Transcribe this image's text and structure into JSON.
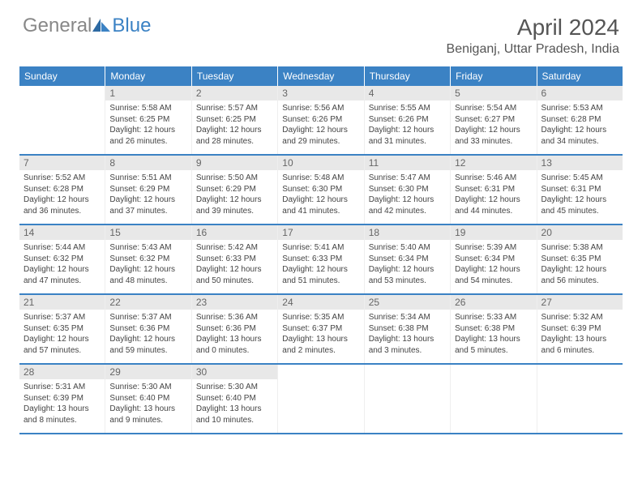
{
  "brand": {
    "part1": "General",
    "part2": "Blue"
  },
  "colors": {
    "header_bg": "#3b82c4",
    "header_text": "#ffffff",
    "daynum_bg": "#e8e8e8",
    "daynum_text": "#666666",
    "body_text": "#444444",
    "row_divider": "#3b82c4",
    "title_text": "#555555"
  },
  "title": "April 2024",
  "location": "Beniganj, Uttar Pradesh, India",
  "days_of_week": [
    "Sunday",
    "Monday",
    "Tuesday",
    "Wednesday",
    "Thursday",
    "Friday",
    "Saturday"
  ],
  "weeks": [
    [
      {
        "n": "",
        "sunrise": "",
        "sunset": "",
        "daylight1": "",
        "daylight2": ""
      },
      {
        "n": "1",
        "sunrise": "Sunrise: 5:58 AM",
        "sunset": "Sunset: 6:25 PM",
        "daylight1": "Daylight: 12 hours",
        "daylight2": "and 26 minutes."
      },
      {
        "n": "2",
        "sunrise": "Sunrise: 5:57 AM",
        "sunset": "Sunset: 6:25 PM",
        "daylight1": "Daylight: 12 hours",
        "daylight2": "and 28 minutes."
      },
      {
        "n": "3",
        "sunrise": "Sunrise: 5:56 AM",
        "sunset": "Sunset: 6:26 PM",
        "daylight1": "Daylight: 12 hours",
        "daylight2": "and 29 minutes."
      },
      {
        "n": "4",
        "sunrise": "Sunrise: 5:55 AM",
        "sunset": "Sunset: 6:26 PM",
        "daylight1": "Daylight: 12 hours",
        "daylight2": "and 31 minutes."
      },
      {
        "n": "5",
        "sunrise": "Sunrise: 5:54 AM",
        "sunset": "Sunset: 6:27 PM",
        "daylight1": "Daylight: 12 hours",
        "daylight2": "and 33 minutes."
      },
      {
        "n": "6",
        "sunrise": "Sunrise: 5:53 AM",
        "sunset": "Sunset: 6:28 PM",
        "daylight1": "Daylight: 12 hours",
        "daylight2": "and 34 minutes."
      }
    ],
    [
      {
        "n": "7",
        "sunrise": "Sunrise: 5:52 AM",
        "sunset": "Sunset: 6:28 PM",
        "daylight1": "Daylight: 12 hours",
        "daylight2": "and 36 minutes."
      },
      {
        "n": "8",
        "sunrise": "Sunrise: 5:51 AM",
        "sunset": "Sunset: 6:29 PM",
        "daylight1": "Daylight: 12 hours",
        "daylight2": "and 37 minutes."
      },
      {
        "n": "9",
        "sunrise": "Sunrise: 5:50 AM",
        "sunset": "Sunset: 6:29 PM",
        "daylight1": "Daylight: 12 hours",
        "daylight2": "and 39 minutes."
      },
      {
        "n": "10",
        "sunrise": "Sunrise: 5:48 AM",
        "sunset": "Sunset: 6:30 PM",
        "daylight1": "Daylight: 12 hours",
        "daylight2": "and 41 minutes."
      },
      {
        "n": "11",
        "sunrise": "Sunrise: 5:47 AM",
        "sunset": "Sunset: 6:30 PM",
        "daylight1": "Daylight: 12 hours",
        "daylight2": "and 42 minutes."
      },
      {
        "n": "12",
        "sunrise": "Sunrise: 5:46 AM",
        "sunset": "Sunset: 6:31 PM",
        "daylight1": "Daylight: 12 hours",
        "daylight2": "and 44 minutes."
      },
      {
        "n": "13",
        "sunrise": "Sunrise: 5:45 AM",
        "sunset": "Sunset: 6:31 PM",
        "daylight1": "Daylight: 12 hours",
        "daylight2": "and 45 minutes."
      }
    ],
    [
      {
        "n": "14",
        "sunrise": "Sunrise: 5:44 AM",
        "sunset": "Sunset: 6:32 PM",
        "daylight1": "Daylight: 12 hours",
        "daylight2": "and 47 minutes."
      },
      {
        "n": "15",
        "sunrise": "Sunrise: 5:43 AM",
        "sunset": "Sunset: 6:32 PM",
        "daylight1": "Daylight: 12 hours",
        "daylight2": "and 48 minutes."
      },
      {
        "n": "16",
        "sunrise": "Sunrise: 5:42 AM",
        "sunset": "Sunset: 6:33 PM",
        "daylight1": "Daylight: 12 hours",
        "daylight2": "and 50 minutes."
      },
      {
        "n": "17",
        "sunrise": "Sunrise: 5:41 AM",
        "sunset": "Sunset: 6:33 PM",
        "daylight1": "Daylight: 12 hours",
        "daylight2": "and 51 minutes."
      },
      {
        "n": "18",
        "sunrise": "Sunrise: 5:40 AM",
        "sunset": "Sunset: 6:34 PM",
        "daylight1": "Daylight: 12 hours",
        "daylight2": "and 53 minutes."
      },
      {
        "n": "19",
        "sunrise": "Sunrise: 5:39 AM",
        "sunset": "Sunset: 6:34 PM",
        "daylight1": "Daylight: 12 hours",
        "daylight2": "and 54 minutes."
      },
      {
        "n": "20",
        "sunrise": "Sunrise: 5:38 AM",
        "sunset": "Sunset: 6:35 PM",
        "daylight1": "Daylight: 12 hours",
        "daylight2": "and 56 minutes."
      }
    ],
    [
      {
        "n": "21",
        "sunrise": "Sunrise: 5:37 AM",
        "sunset": "Sunset: 6:35 PM",
        "daylight1": "Daylight: 12 hours",
        "daylight2": "and 57 minutes."
      },
      {
        "n": "22",
        "sunrise": "Sunrise: 5:37 AM",
        "sunset": "Sunset: 6:36 PM",
        "daylight1": "Daylight: 12 hours",
        "daylight2": "and 59 minutes."
      },
      {
        "n": "23",
        "sunrise": "Sunrise: 5:36 AM",
        "sunset": "Sunset: 6:36 PM",
        "daylight1": "Daylight: 13 hours",
        "daylight2": "and 0 minutes."
      },
      {
        "n": "24",
        "sunrise": "Sunrise: 5:35 AM",
        "sunset": "Sunset: 6:37 PM",
        "daylight1": "Daylight: 13 hours",
        "daylight2": "and 2 minutes."
      },
      {
        "n": "25",
        "sunrise": "Sunrise: 5:34 AM",
        "sunset": "Sunset: 6:38 PM",
        "daylight1": "Daylight: 13 hours",
        "daylight2": "and 3 minutes."
      },
      {
        "n": "26",
        "sunrise": "Sunrise: 5:33 AM",
        "sunset": "Sunset: 6:38 PM",
        "daylight1": "Daylight: 13 hours",
        "daylight2": "and 5 minutes."
      },
      {
        "n": "27",
        "sunrise": "Sunrise: 5:32 AM",
        "sunset": "Sunset: 6:39 PM",
        "daylight1": "Daylight: 13 hours",
        "daylight2": "and 6 minutes."
      }
    ],
    [
      {
        "n": "28",
        "sunrise": "Sunrise: 5:31 AM",
        "sunset": "Sunset: 6:39 PM",
        "daylight1": "Daylight: 13 hours",
        "daylight2": "and 8 minutes."
      },
      {
        "n": "29",
        "sunrise": "Sunrise: 5:30 AM",
        "sunset": "Sunset: 6:40 PM",
        "daylight1": "Daylight: 13 hours",
        "daylight2": "and 9 minutes."
      },
      {
        "n": "30",
        "sunrise": "Sunrise: 5:30 AM",
        "sunset": "Sunset: 6:40 PM",
        "daylight1": "Daylight: 13 hours",
        "daylight2": "and 10 minutes."
      },
      {
        "n": "",
        "sunrise": "",
        "sunset": "",
        "daylight1": "",
        "daylight2": ""
      },
      {
        "n": "",
        "sunrise": "",
        "sunset": "",
        "daylight1": "",
        "daylight2": ""
      },
      {
        "n": "",
        "sunrise": "",
        "sunset": "",
        "daylight1": "",
        "daylight2": ""
      },
      {
        "n": "",
        "sunrise": "",
        "sunset": "",
        "daylight1": "",
        "daylight2": ""
      }
    ]
  ]
}
